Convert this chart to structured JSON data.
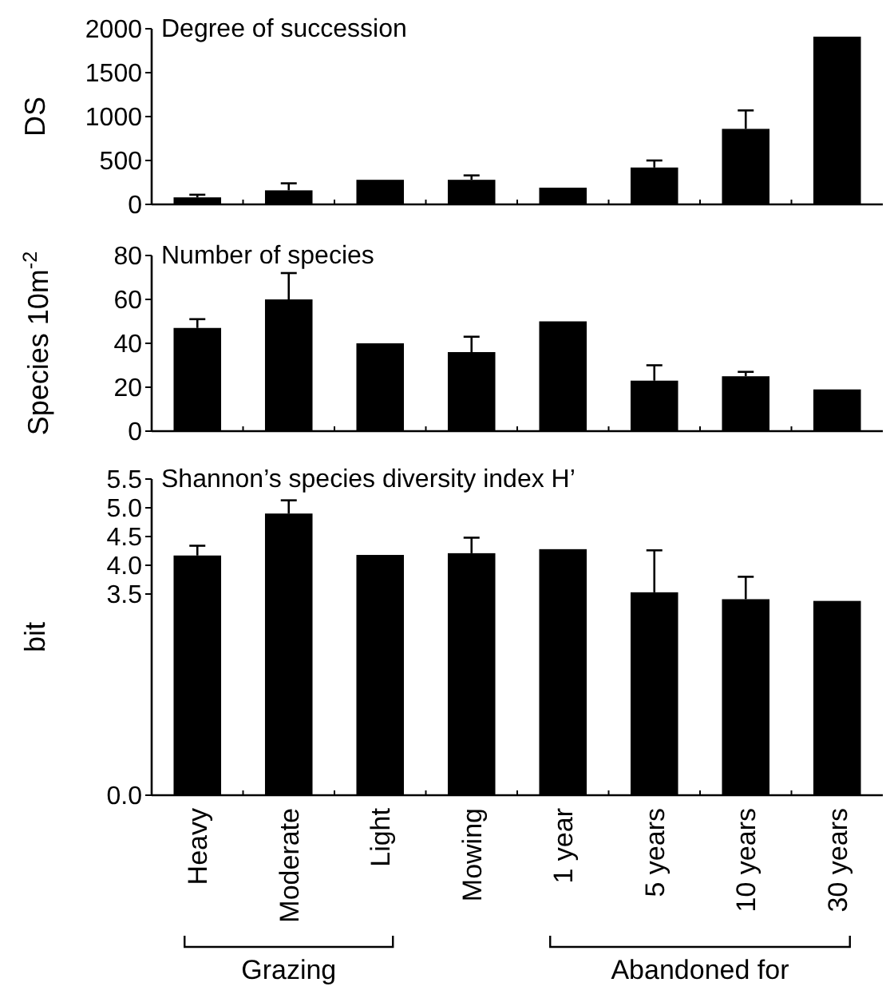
{
  "chart_data": [
    {
      "type": "bar",
      "title": "Degree of succession",
      "ylabel": "DS",
      "categories": [
        null,
        null,
        null,
        null,
        null,
        null,
        null,
        null
      ],
      "values": [
        80,
        160,
        280,
        280,
        190,
        420,
        860,
        1910
      ],
      "errors": [
        [
          80,
          110
        ],
        [
          160,
          240
        ],
        null,
        [
          280,
          330
        ],
        null,
        [
          420,
          500
        ],
        [
          860,
          1070
        ],
        null
      ],
      "color": "#000000",
      "ylim": [
        0,
        2000
      ],
      "yticks": [
        0,
        500,
        1000,
        1500,
        2000
      ]
    },
    {
      "type": "bar",
      "title": "Number of species",
      "ylabel": "Species 10m$^{-2}$",
      "categories": [
        null,
        null,
        null,
        null,
        null,
        null,
        null,
        null
      ],
      "values": [
        47,
        60,
        40,
        36,
        50,
        23,
        25,
        19
      ],
      "errors": [
        [
          47,
          51
        ],
        [
          60,
          72
        ],
        null,
        [
          36,
          43
        ],
        null,
        [
          23,
          30
        ],
        [
          25,
          27
        ],
        null
      ],
      "color": "#000000",
      "ylim": [
        0,
        80
      ],
      "yticks": [
        0,
        20,
        40,
        60,
        80
      ]
    },
    {
      "type": "bar",
      "title": "Shannon’s species diversity index H’",
      "ylabel": "bit",
      "categories": [
        "Heavy",
        "Moderate",
        "Light",
        "Mowing",
        "1 year",
        "5 years",
        "10 years",
        "30 years"
      ],
      "values": [
        4.17,
        4.9,
        4.18,
        4.21,
        4.28,
        3.53,
        3.41,
        3.38
      ],
      "errors": [
        [
          4.17,
          4.34
        ],
        [
          4.9,
          5.13
        ],
        null,
        [
          4.21,
          4.48
        ],
        null,
        [
          3.53,
          4.26
        ],
        [
          3.41,
          3.8
        ],
        null
      ],
      "color": "#000000",
      "ylim": [
        0,
        5.5
      ],
      "yticks": [
        {
          "value": 0,
          "label": "0.0"
        },
        {
          "value": 3.5,
          "label": "3.5"
        },
        {
          "value": 4,
          "label": "4.0"
        },
        {
          "value": 4.5,
          "label": "4.5"
        },
        {
          "value": 5,
          "label": "5.0"
        },
        {
          "value": 5.5,
          "label": "5.5"
        }
      ],
      "annotations": [
        "Grazing",
        "Abandoned for"
      ]
    }
  ]
}
